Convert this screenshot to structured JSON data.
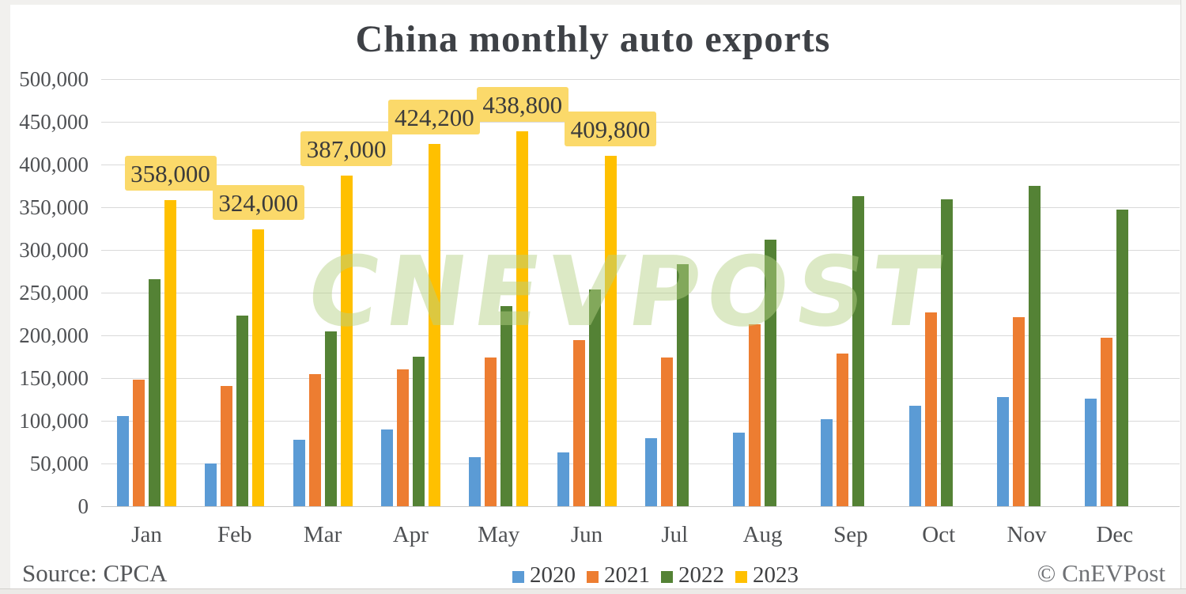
{
  "title": "China monthly auto exports",
  "watermark": "CNEVPOST",
  "footer": {
    "source": "Source: CPCA",
    "copyright": "© CnEVPost"
  },
  "colors": {
    "series_2020": "#5B9BD5",
    "series_2021": "#ED7D31",
    "series_2022": "#548235",
    "series_2023": "#FFC000",
    "data_label_bg": "#FBD96A",
    "gridline": "#d9d9d9",
    "axis_text": "#4f5154",
    "title_text": "#3e4146",
    "watermark_green": "#B5D185"
  },
  "chart_data": {
    "type": "bar",
    "title": "China monthly auto exports",
    "categories": [
      "Jan",
      "Feb",
      "Mar",
      "Apr",
      "May",
      "Jun",
      "Jul",
      "Aug",
      "Sep",
      "Oct",
      "Nov",
      "Dec"
    ],
    "series": [
      {
        "name": "2020",
        "color": "#5B9BD5",
        "values": [
          106000,
          50000,
          78000,
          90000,
          57000,
          63000,
          80000,
          86000,
          102000,
          118000,
          128000,
          126000
        ]
      },
      {
        "name": "2021",
        "color": "#ED7D31",
        "values": [
          148000,
          141000,
          155000,
          160000,
          174000,
          194000,
          174000,
          213000,
          179000,
          227000,
          221000,
          197000
        ]
      },
      {
        "name": "2022",
        "color": "#548235",
        "values": [
          266000,
          223000,
          205000,
          175000,
          234000,
          254000,
          283000,
          312000,
          363000,
          359000,
          375000,
          347000
        ]
      },
      {
        "name": "2023",
        "color": "#FFC000",
        "values": [
          358000,
          324000,
          387000,
          424200,
          438800,
          409800,
          null,
          null,
          null,
          null,
          null,
          null
        ],
        "data_labels": [
          "358,000",
          "324,000",
          "387,000",
          "424,200",
          "438,800",
          "409,800"
        ]
      }
    ],
    "y_ticks": [
      "500,000",
      "450,000",
      "400,000",
      "350,000",
      "300,000",
      "250,000",
      "200,000",
      "150,000",
      "100,000",
      "50,000",
      "0"
    ],
    "ylim": [
      0,
      500000
    ],
    "xlabel": "",
    "ylabel": "",
    "grid": true,
    "legend_position": "bottom"
  }
}
